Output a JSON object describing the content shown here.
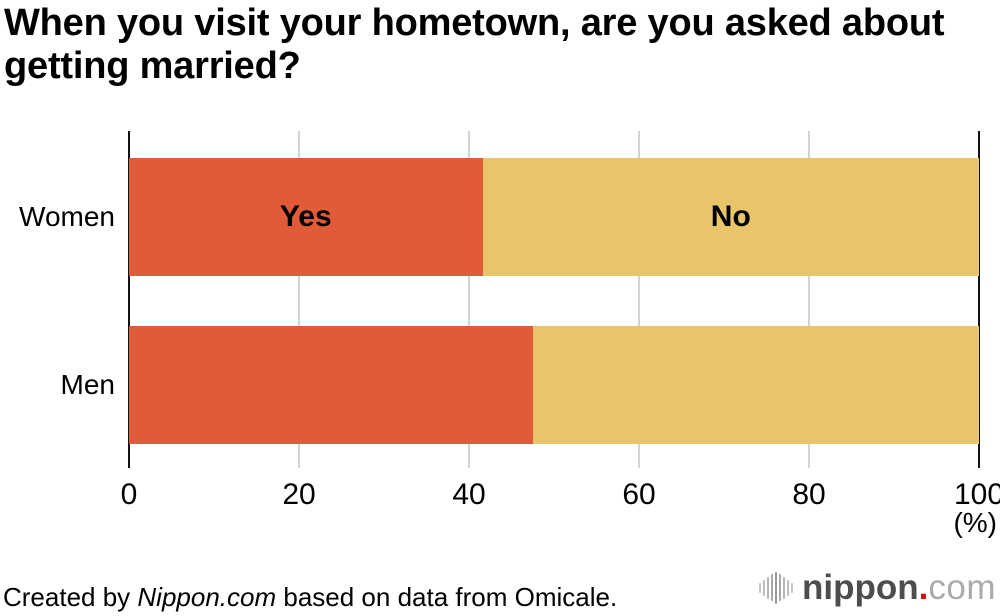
{
  "title": "When you visit your hometown, are you asked about getting married?",
  "chart_data": {
    "type": "bar",
    "orientation": "horizontal",
    "stacked": true,
    "title": "When you visit your hometown, are you asked about getting married?",
    "categories": [
      "Women",
      "Men"
    ],
    "series": [
      {
        "name": "Yes",
        "color": "#e15b38",
        "values": [
          41.6,
          47.5
        ]
      },
      {
        "name": "No",
        "color": "#e8c46a",
        "values": [
          58.4,
          52.5
        ]
      }
    ],
    "xlabel": "(%)",
    "xlim": [
      0,
      100
    ],
    "xticks": [
      "0",
      "20",
      "40",
      "60",
      "80",
      "100"
    ],
    "grid": true,
    "legend": "segment labels shown inside top bar"
  },
  "footer": {
    "credit_prefix": "Created by ",
    "credit_source": "Nippon.com",
    "credit_suffix": " based on data from Omicale."
  },
  "logo": {
    "icon": "soundwave-bars-icon",
    "name": "nippon",
    "dot": ".",
    "tld": "com"
  },
  "colors": {
    "yes": "#e15b38",
    "no": "#e8c46a",
    "gridline": "#d4d4d4",
    "axis": "#111111",
    "background": "#ffffff",
    "text": "#000000",
    "logo_name": "#4d4d4d",
    "logo_tld": "#ababab",
    "logo_dot": "#e60012"
  }
}
